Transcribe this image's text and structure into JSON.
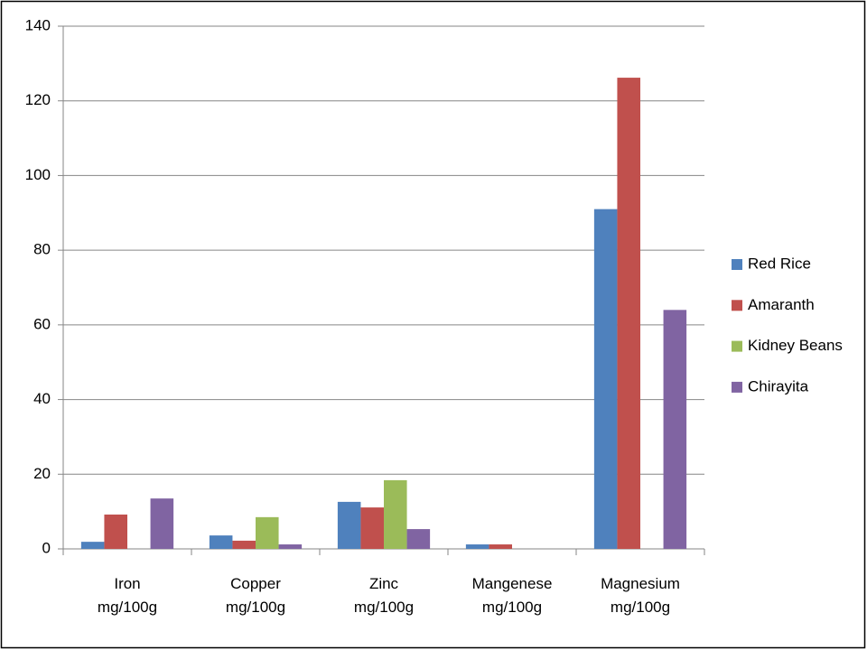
{
  "chart_data": {
    "type": "bar",
    "categories": [
      "Iron mg/100g",
      "Copper mg/100g",
      "Zinc mg/100g",
      "Mangenese mg/100g",
      "Magnesium mg/100g"
    ],
    "series": [
      {
        "name": "Red Rice",
        "color": "#4f81bd",
        "values": [
          1.9,
          3.6,
          12.6,
          1.2,
          91
        ]
      },
      {
        "name": "Amaranth",
        "color": "#c0504d",
        "values": [
          9.2,
          2.2,
          11.1,
          1.2,
          126.2
        ]
      },
      {
        "name": "Kidney Beans",
        "color": "#9bbb59",
        "values": [
          null,
          8.5,
          18.4,
          null,
          null
        ]
      },
      {
        "name": "Chirayita",
        "color": "#8064a2",
        "values": [
          13.5,
          1.2,
          5.3,
          null,
          64
        ]
      }
    ],
    "ylim": [
      0,
      140
    ],
    "yticks": [
      0,
      20,
      40,
      60,
      80,
      100,
      120,
      140
    ],
    "grid": true,
    "legend": "right"
  }
}
